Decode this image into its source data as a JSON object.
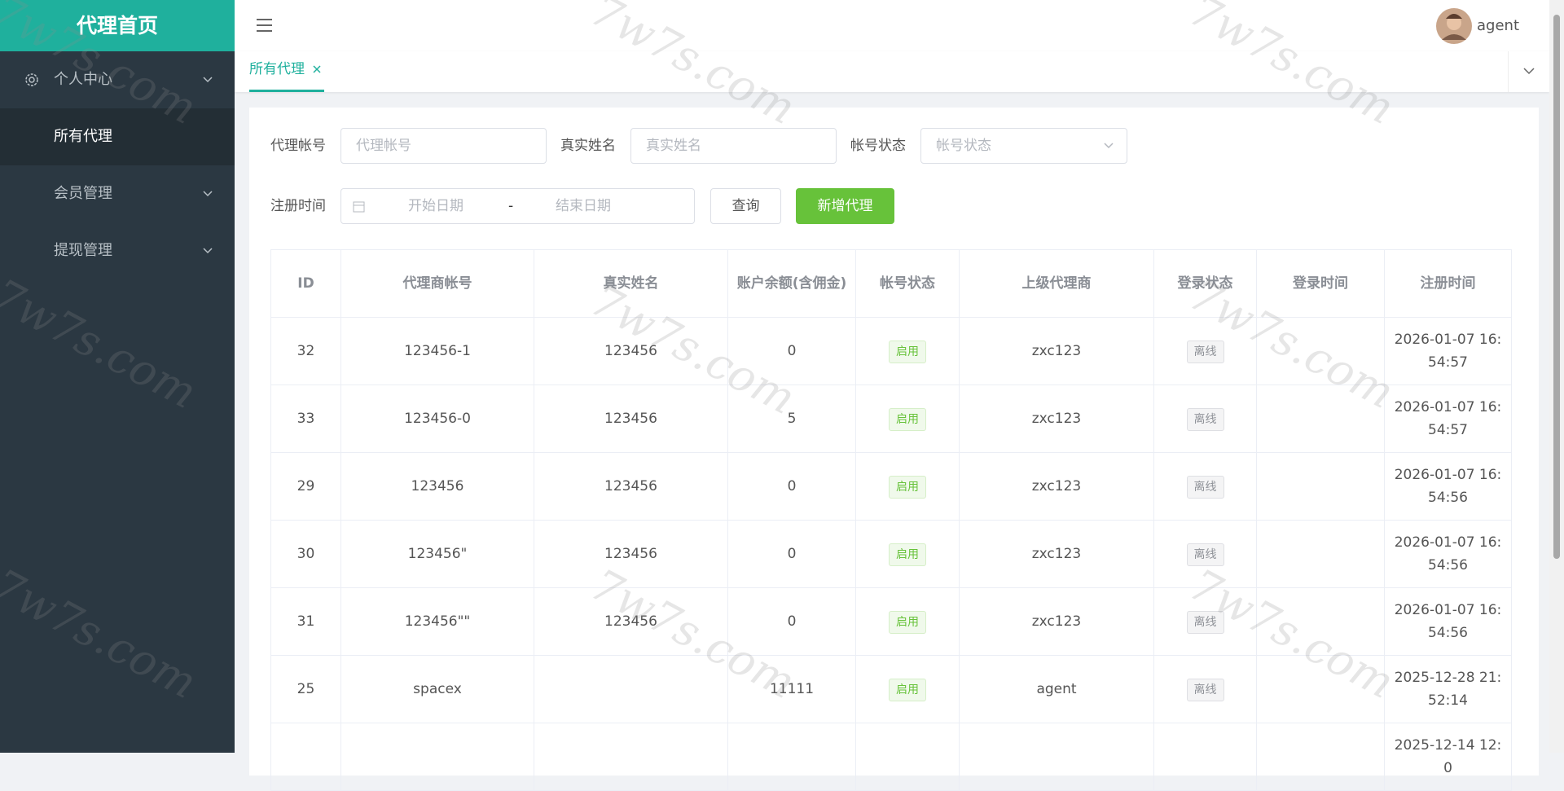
{
  "sidebar": {
    "title": "代理首页",
    "menu": [
      {
        "label": "个人中心",
        "submenu": true
      },
      {
        "label": "所有代理",
        "active": true
      },
      {
        "label": "会员管理",
        "submenu": true
      },
      {
        "label": "提现管理",
        "submenu": true
      }
    ]
  },
  "header": {
    "user": "agent"
  },
  "tabs": [
    {
      "label": "所有代理"
    }
  ],
  "filters": {
    "account_label": "代理帐号",
    "account_placeholder": "代理帐号",
    "name_label": "真实姓名",
    "name_placeholder": "真实姓名",
    "status_label": "帐号状态",
    "status_placeholder": "帐号状态",
    "date_label": "注册时间",
    "start_placeholder": "开始日期",
    "separator": "-",
    "end_placeholder": "结束日期",
    "query_button": "查询",
    "add_button": "新增代理"
  },
  "table": {
    "columns": [
      "ID",
      "代理商帐号",
      "真实姓名",
      "账户余额(含佣金)",
      "帐号状态",
      "上级代理商",
      "登录状态",
      "登录时间",
      "注册时间"
    ],
    "rows": [
      [
        32,
        "123456-1",
        "123456",
        0,
        "启用",
        "zxc123",
        "离线",
        null,
        "2026-01-07 16:54:57"
      ],
      [
        33,
        "123456-0",
        "123456",
        5,
        "启用",
        "zxc123",
        "离线",
        null,
        "2026-01-07 16:54:57"
      ],
      [
        29,
        "123456",
        "123456",
        0,
        "启用",
        "zxc123",
        "离线",
        null,
        "2026-01-07 16:54:56"
      ],
      [
        30,
        "123456\"",
        "123456",
        0,
        "启用",
        "zxc123",
        "离线",
        null,
        "2026-01-07 16:54:56"
      ],
      [
        31,
        "123456\"\"",
        "123456",
        0,
        "启用",
        "zxc123",
        "离线",
        null,
        "2026-01-07 16:54:56"
      ],
      [
        25,
        "spacex",
        null,
        11111,
        "启用",
        "agent",
        "离线",
        null,
        "2025-12-28 21:52:14"
      ],
      [
        null,
        null,
        null,
        null,
        null,
        null,
        null,
        null,
        "2025-12-14 12:0"
      ]
    ]
  },
  "watermark": "7w7s.com"
}
